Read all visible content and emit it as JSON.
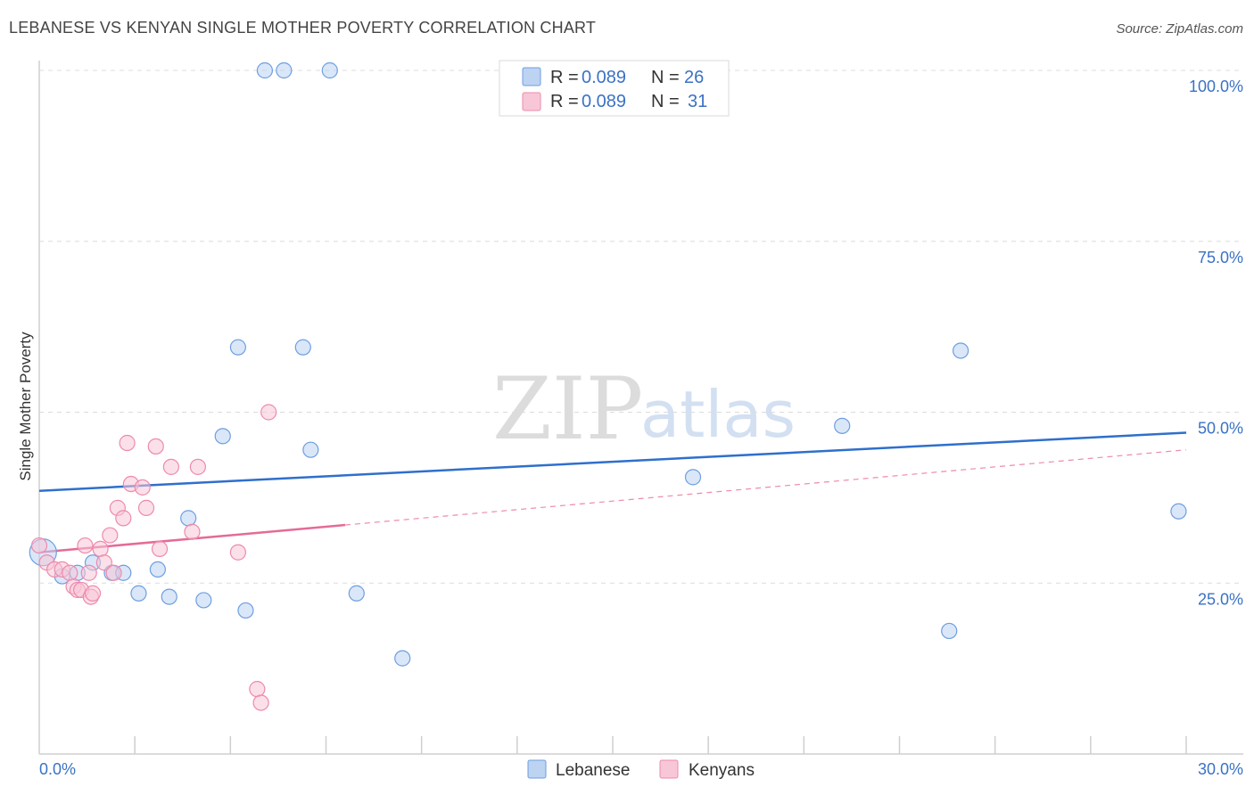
{
  "header": {
    "title": "LEBANESE VS KENYAN SINGLE MOTHER POVERTY CORRELATION CHART",
    "source": "Source: ZipAtlas.com"
  },
  "watermark": {
    "zip": "ZIP",
    "atlas": "atlas"
  },
  "legend": {
    "rows": [
      {
        "r_label": "R = ",
        "r_value": "0.089",
        "n_label": "N = ",
        "n_value": "26",
        "color": "#6e9ee0"
      },
      {
        "r_label": "R = ",
        "r_value": "0.089",
        "n_label": "N = ",
        "n_value": "31",
        "color": "#ee8aab"
      }
    ]
  },
  "bottom_legend": [
    "Lebanese",
    "Kenyans"
  ],
  "chart_data": {
    "type": "scatter",
    "title": "LEBANESE VS KENYAN SINGLE MOTHER POVERTY CORRELATION CHART",
    "xlabel": "",
    "ylabel": "Single Mother Poverty",
    "xlim": [
      0,
      30
    ],
    "ylim": [
      0,
      100
    ],
    "x_tick_labels": [
      "0.0%",
      "30.0%"
    ],
    "y_ticks": [
      25,
      50,
      75,
      100
    ],
    "y_tick_labels": [
      "25.0%",
      "50.0%",
      "75.0%",
      "100.0%"
    ],
    "series": [
      {
        "name": "Lebanese",
        "color": "#6e9ee0",
        "fill": "#bcd3f2",
        "trend": {
          "x0": 0,
          "y0": 38.5,
          "x1": 30,
          "y1": 47.0,
          "solid_to": 30
        },
        "points": [
          {
            "x": 0.1,
            "y": 29.5,
            "big": true
          },
          {
            "x": 0.6,
            "y": 26.0
          },
          {
            "x": 1.0,
            "y": 26.5
          },
          {
            "x": 1.4,
            "y": 28.0
          },
          {
            "x": 1.9,
            "y": 26.5
          },
          {
            "x": 2.2,
            "y": 26.5
          },
          {
            "x": 2.6,
            "y": 23.5
          },
          {
            "x": 3.1,
            "y": 27.0
          },
          {
            "x": 3.4,
            "y": 23.0
          },
          {
            "x": 3.9,
            "y": 34.5
          },
          {
            "x": 4.3,
            "y": 22.5
          },
          {
            "x": 4.8,
            "y": 46.5
          },
          {
            "x": 5.2,
            "y": 59.5
          },
          {
            "x": 5.4,
            "y": 21.0
          },
          {
            "x": 5.9,
            "y": 100.0
          },
          {
            "x": 6.4,
            "y": 100.0
          },
          {
            "x": 6.9,
            "y": 59.5
          },
          {
            "x": 7.1,
            "y": 44.5
          },
          {
            "x": 7.6,
            "y": 100.0
          },
          {
            "x": 8.3,
            "y": 23.5
          },
          {
            "x": 9.5,
            "y": 14.0
          },
          {
            "x": 17.1,
            "y": 40.5
          },
          {
            "x": 21.0,
            "y": 48.0
          },
          {
            "x": 23.8,
            "y": 18.0
          },
          {
            "x": 24.1,
            "y": 59.0
          },
          {
            "x": 29.8,
            "y": 35.5
          }
        ]
      },
      {
        "name": "Kenyans",
        "color": "#ee8aab",
        "fill": "#f8c7d7",
        "trend": {
          "x0": 0,
          "y0": 29.5,
          "x1": 30,
          "y1": 44.5,
          "solid_to": 8.0
        },
        "points": [
          {
            "x": 0.0,
            "y": 30.5
          },
          {
            "x": 0.2,
            "y": 28.0
          },
          {
            "x": 0.4,
            "y": 27.0
          },
          {
            "x": 0.6,
            "y": 27.0
          },
          {
            "x": 0.8,
            "y": 26.5
          },
          {
            "x": 0.9,
            "y": 24.5
          },
          {
            "x": 1.0,
            "y": 24.0
          },
          {
            "x": 1.1,
            "y": 24.0
          },
          {
            "x": 1.2,
            "y": 30.5
          },
          {
            "x": 1.35,
            "y": 23.0
          },
          {
            "x": 1.4,
            "y": 23.5
          },
          {
            "x": 1.6,
            "y": 30.0
          },
          {
            "x": 1.7,
            "y": 28.0
          },
          {
            "x": 1.85,
            "y": 32.0
          },
          {
            "x": 1.95,
            "y": 26.5
          },
          {
            "x": 2.05,
            "y": 36.0
          },
          {
            "x": 2.2,
            "y": 34.5
          },
          {
            "x": 2.3,
            "y": 45.5
          },
          {
            "x": 2.4,
            "y": 39.5
          },
          {
            "x": 2.7,
            "y": 39.0
          },
          {
            "x": 2.8,
            "y": 36.0
          },
          {
            "x": 3.05,
            "y": 45.0
          },
          {
            "x": 3.15,
            "y": 30.0
          },
          {
            "x": 3.45,
            "y": 42.0
          },
          {
            "x": 4.0,
            "y": 32.5
          },
          {
            "x": 4.15,
            "y": 42.0
          },
          {
            "x": 5.2,
            "y": 29.5
          },
          {
            "x": 5.7,
            "y": 9.5
          },
          {
            "x": 5.8,
            "y": 7.5
          },
          {
            "x": 6.0,
            "y": 50.0
          },
          {
            "x": 1.3,
            "y": 26.5
          }
        ]
      }
    ]
  }
}
